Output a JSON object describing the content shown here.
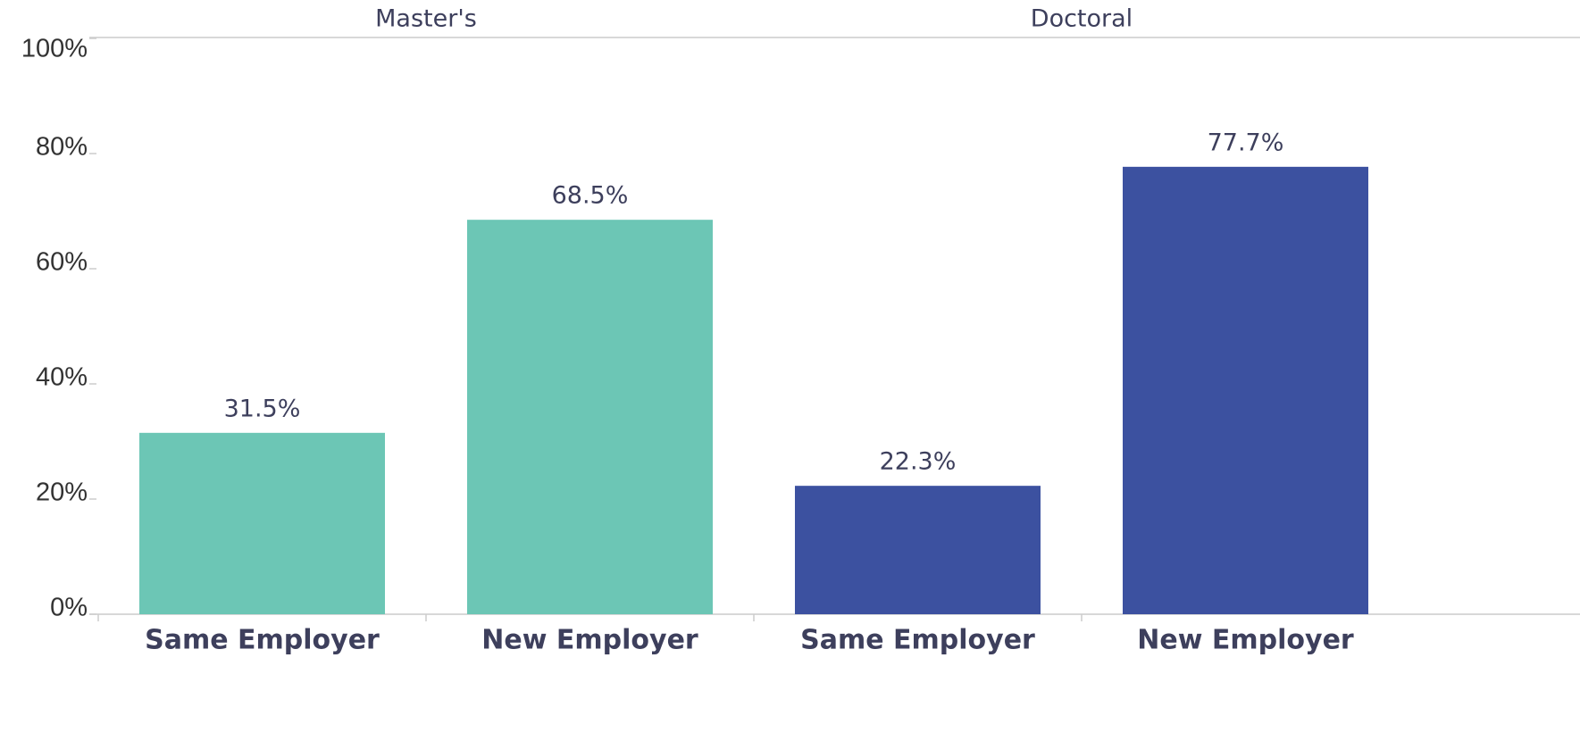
{
  "chart_data": {
    "type": "bar",
    "groups": [
      {
        "name": "Master's",
        "color": "#6cc6b5",
        "categories": [
          "Same Employer",
          "New Employer"
        ],
        "values": [
          31.5,
          68.5
        ],
        "value_labels": [
          "31.5%",
          "68.5%"
        ]
      },
      {
        "name": "Doctoral",
        "color": "#3c51a0",
        "categories": [
          "Same Employer",
          "New Employer"
        ],
        "values": [
          22.3,
          77.7
        ],
        "value_labels": [
          "22.3%",
          "77.7%"
        ]
      }
    ],
    "ylim": [
      0,
      100
    ],
    "yticks": [
      {
        "value": 0,
        "label": "0%"
      },
      {
        "value": 20,
        "label": "20%"
      },
      {
        "value": 40,
        "label": "40%"
      },
      {
        "value": 60,
        "label": "60%"
      },
      {
        "value": 80,
        "label": "80%"
      },
      {
        "value": 100,
        "label": "100%"
      }
    ]
  }
}
